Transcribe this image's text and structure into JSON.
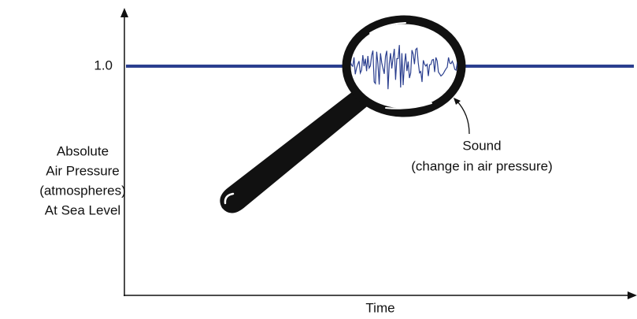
{
  "axis": {
    "tick_label": "1.0",
    "y_label": [
      "Absolute",
      "Air Pressure",
      "(atmospheres)",
      "At Sea Level"
    ],
    "x_label": "Time"
  },
  "annotation": {
    "lines": [
      "Sound",
      "(change in air pressure)"
    ]
  }
}
